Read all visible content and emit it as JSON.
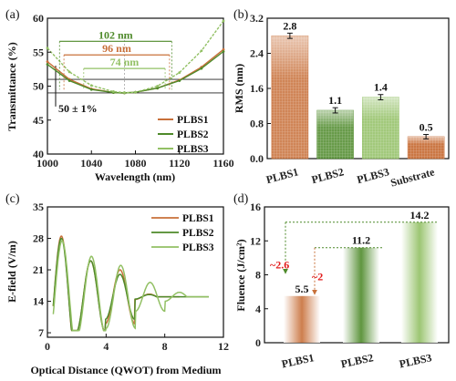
{
  "colors": {
    "plbs1": "#c8703a",
    "plbs2": "#4e8a2a",
    "plbs3": "#92c064",
    "red": "#e21b1b"
  },
  "chart_data": [
    {
      "panel": "(a)",
      "type": "line",
      "xlabel": "Wavelength (nm)",
      "ylabel": "Transmittance (%)",
      "xlim": [
        1000,
        1160
      ],
      "ylim": [
        40,
        60
      ],
      "xticks": [
        1000,
        1040,
        1080,
        1120,
        1160
      ],
      "yticks": [
        40,
        45,
        50,
        55,
        60
      ],
      "legend": "bottom-right",
      "series": [
        {
          "name": "PLBS1",
          "color_key": "plbs1",
          "x": [
            1000,
            1020,
            1040,
            1060,
            1070,
            1080,
            1100,
            1120,
            1140,
            1160
          ],
          "y": [
            53.6,
            51.0,
            49.6,
            49.05,
            49.0,
            49.1,
            49.7,
            50.9,
            52.8,
            55.4
          ]
        },
        {
          "name": "PLBS2",
          "color_key": "plbs2",
          "x": [
            1000,
            1020,
            1040,
            1060,
            1070,
            1080,
            1100,
            1120,
            1140,
            1160
          ],
          "y": [
            53.2,
            50.8,
            49.5,
            49.05,
            49.0,
            49.1,
            49.7,
            50.8,
            52.6,
            55.1
          ]
        },
        {
          "name": "PLBS3",
          "color_key": "plbs3",
          "x": [
            1000,
            1020,
            1040,
            1060,
            1070,
            1080,
            1100,
            1120,
            1140,
            1160
          ],
          "y": [
            55.6,
            52.1,
            50.1,
            49.2,
            49.05,
            49.1,
            50.0,
            52.0,
            55.2,
            59.6
          ]
        }
      ],
      "annotations": [
        {
          "text": "102 nm",
          "color_key": "plbs2",
          "x1": 1011,
          "x2": 1113,
          "y": 56.6
        },
        {
          "text": "96 nm",
          "color_key": "plbs1",
          "x1": 1015,
          "x2": 1111,
          "y": 54.6
        },
        {
          "text": "74 nm",
          "color_key": "plbs3",
          "x1": 1033,
          "x2": 1107,
          "y": 52.6
        }
      ],
      "band_label": "50 ± 1%",
      "band": [
        49,
        51
      ]
    },
    {
      "panel": "(b)",
      "type": "bar",
      "ylabel": "RMS (nm)",
      "ylim": [
        0,
        3.2
      ],
      "yticks": [
        0,
        0.8,
        1.6,
        2.4,
        3.2
      ],
      "categories": [
        "PLBS1",
        "PLBS2",
        "PLBS3",
        "Substrate"
      ],
      "values": [
        2.8,
        1.1,
        1.4,
        0.5
      ],
      "errors": [
        0.06,
        0.06,
        0.06,
        0.05
      ],
      "value_labels": [
        "2.8",
        "1.1",
        "1.4",
        "0.5"
      ],
      "color_keys": [
        "plbs1",
        "plbs2",
        "plbs3",
        "plbs1"
      ]
    },
    {
      "panel": "(c)",
      "type": "line",
      "xlabel": "Optical Distance (QWOT) from Medium",
      "ylabel": "E-field (V/m)",
      "xlim": [
        0,
        12
      ],
      "ylim": [
        6,
        35
      ],
      "xticks": [
        0,
        4,
        8,
        12
      ],
      "yticks": [
        7,
        14,
        21,
        28,
        35
      ],
      "legend": "top-right",
      "series": [
        {
          "name": "PLBS1",
          "color_key": "plbs1",
          "x_end": 9.0,
          "amps": [
            13.5,
            8,
            6,
            0.6
          ],
          "periods": 2.0,
          "phase0": 0.95
        },
        {
          "name": "PLBS2",
          "color_key": "plbs2",
          "x_end": 11.0,
          "amps": [
            13.0,
            8,
            5,
            0.5
          ],
          "periods": 2.0,
          "phase0": 0.95
        },
        {
          "name": "PLBS3",
          "color_key": "plbs3",
          "x_end": 11.0,
          "amps": [
            12.5,
            9,
            7,
            3.2,
            1
          ],
          "periods": 2.0,
          "phase0": 1.0
        }
      ]
    },
    {
      "panel": "(d)",
      "type": "bar",
      "ylabel": "Fluence (J/cm²)",
      "ylim": [
        0,
        16
      ],
      "yticks": [
        0,
        4,
        8,
        12,
        16
      ],
      "categories": [
        "PLBS1",
        "PLBS2",
        "PLBS3"
      ],
      "values": [
        5.5,
        11.2,
        14.2
      ],
      "value_labels": [
        "5.5",
        "11.2",
        "14.2"
      ],
      "color_keys": [
        "plbs1",
        "plbs2",
        "plbs3"
      ],
      "ratio_labels": [
        "~2.6",
        "~2"
      ]
    }
  ]
}
